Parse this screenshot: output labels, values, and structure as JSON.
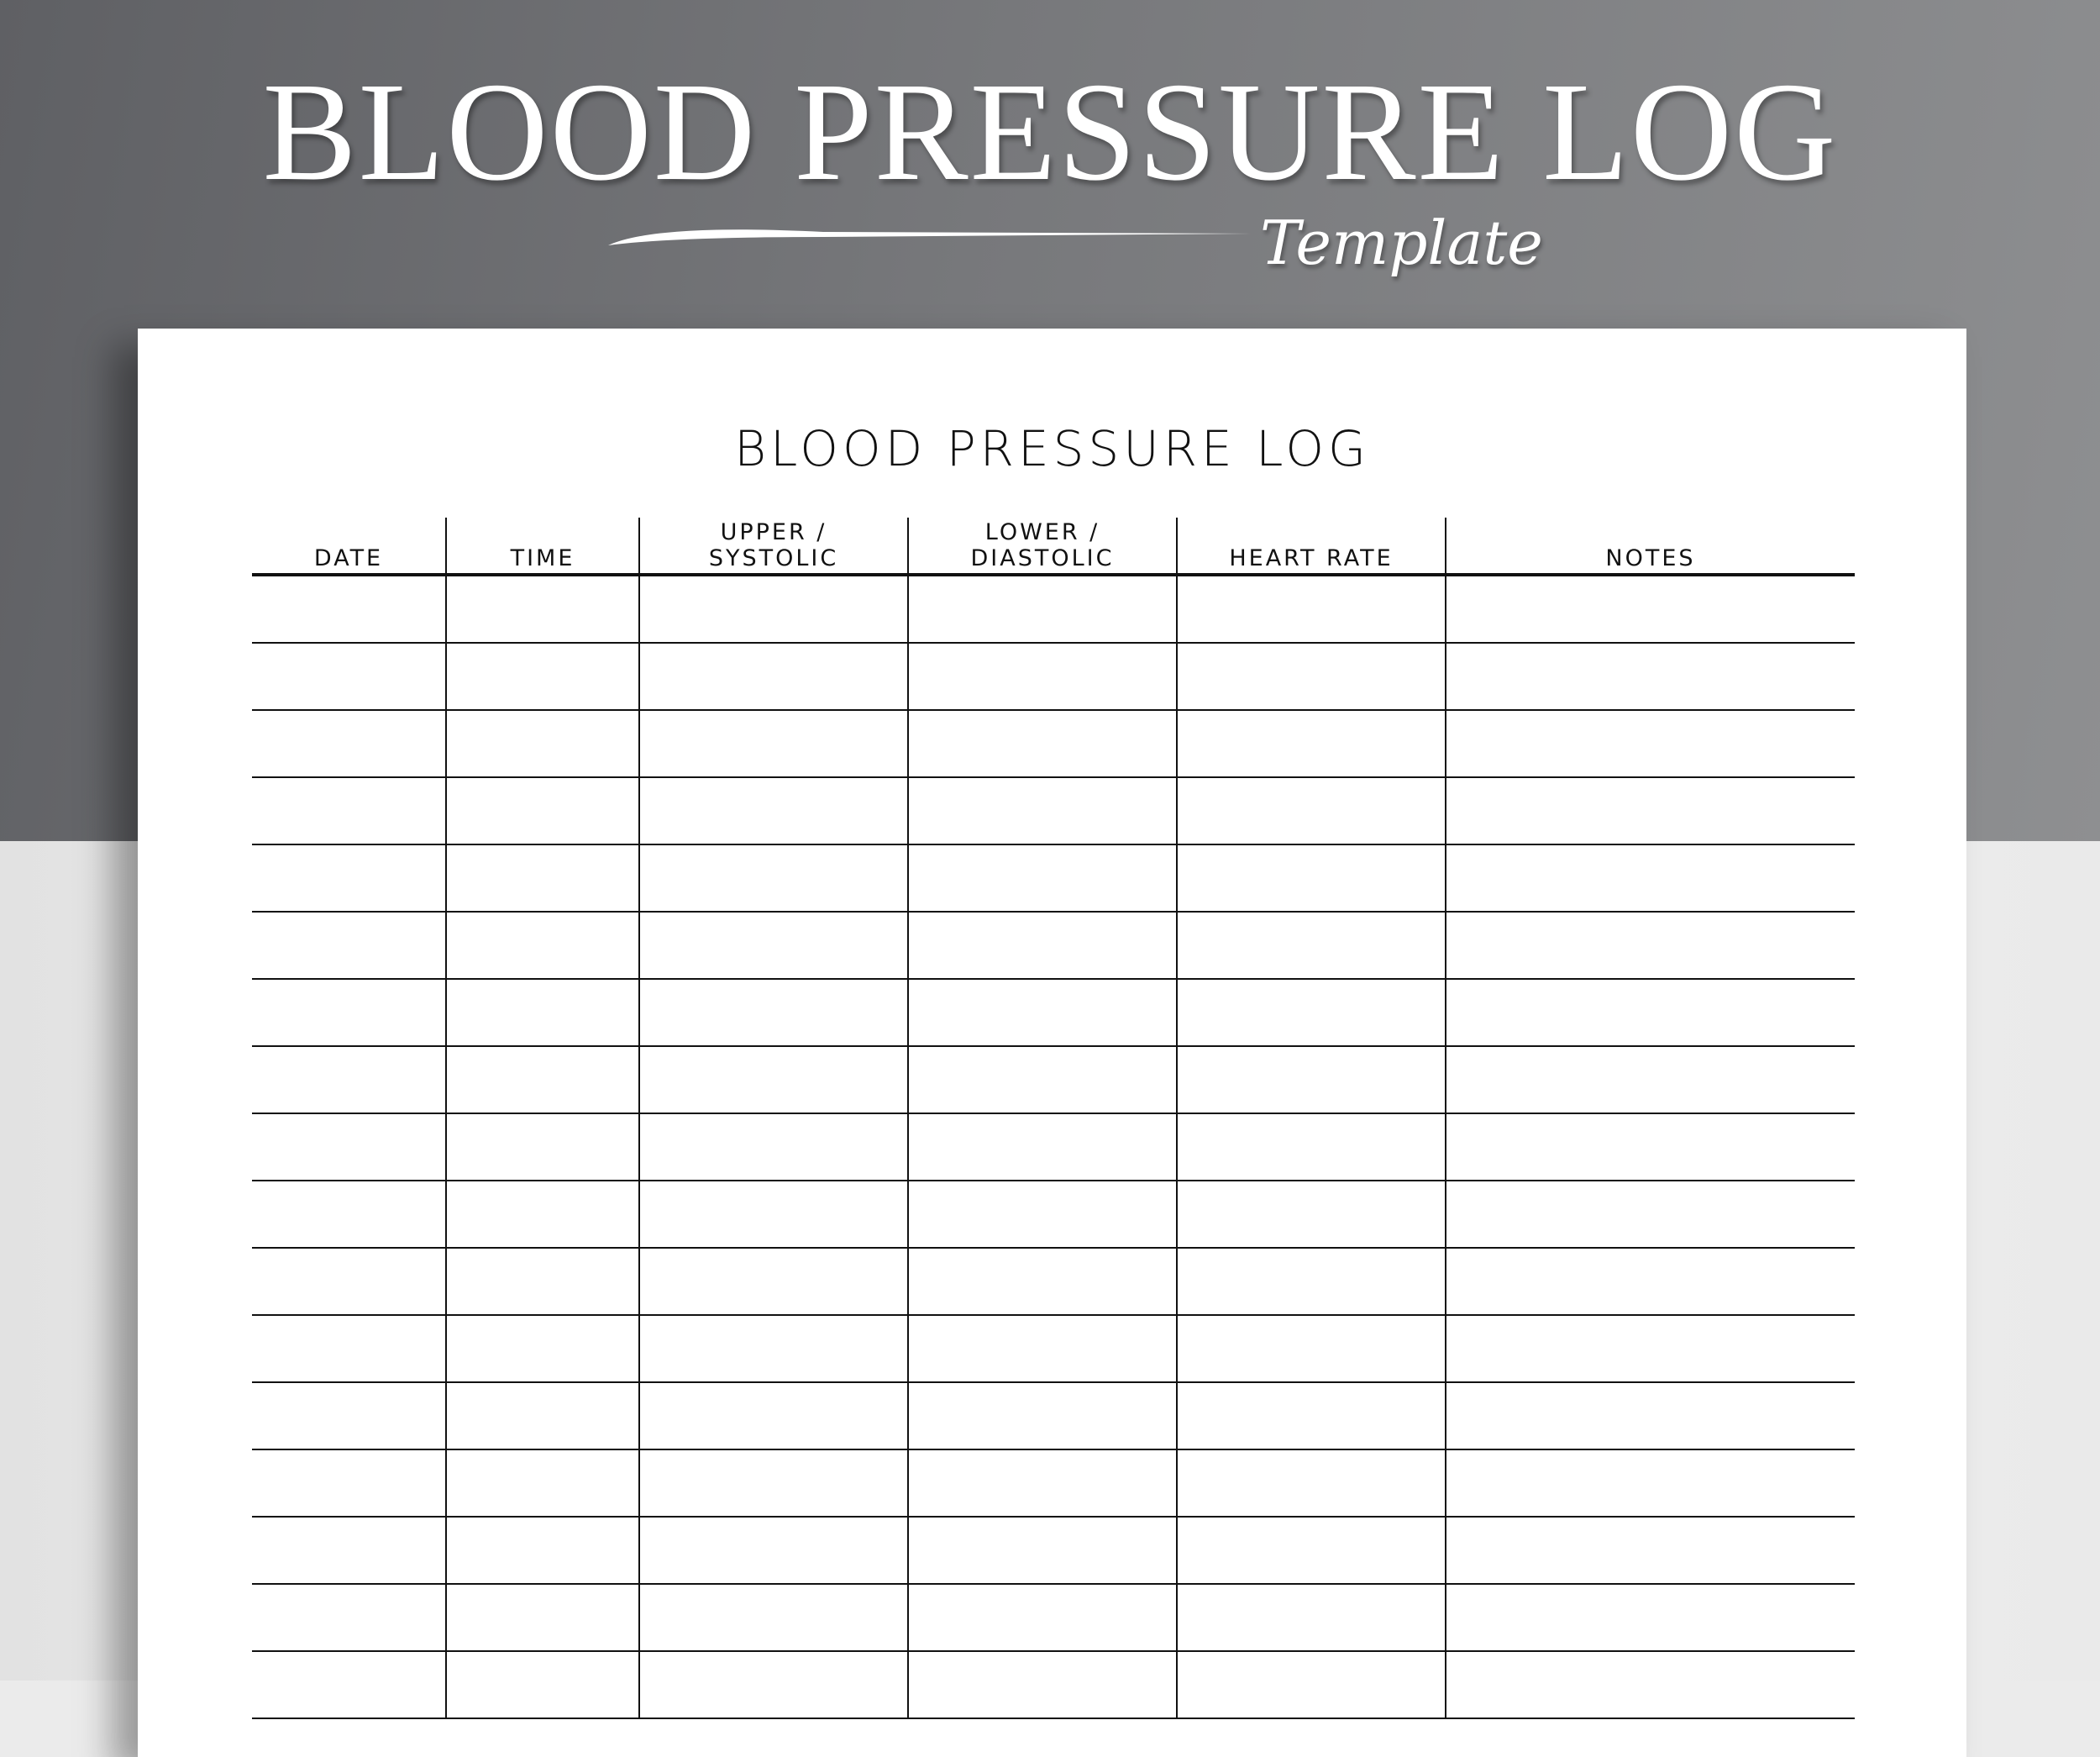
{
  "banner": {
    "title": "BLOOD PRESSURE LOG",
    "subtitle": "Template"
  },
  "document": {
    "title": "BLOOD PRESSURE LOG",
    "columns": [
      "DATE",
      "TIME",
      "UPPER / SYSTOLIC",
      "LOWER / DIASTOLIC",
      "HEART RATE",
      "NOTES"
    ],
    "column_lines": [
      [
        "DATE"
      ],
      [
        "TIME"
      ],
      [
        "UPPER /",
        "SYSTOLIC"
      ],
      [
        "LOWER /",
        "DIASTOLIC"
      ],
      [
        "HEART RATE"
      ],
      [
        "NOTES"
      ]
    ],
    "rows": 17
  },
  "colors": {
    "background_top": "#77787b",
    "background_bottom": "#ebebeb",
    "paper": "#ffffff",
    "ink": "#111111"
  }
}
